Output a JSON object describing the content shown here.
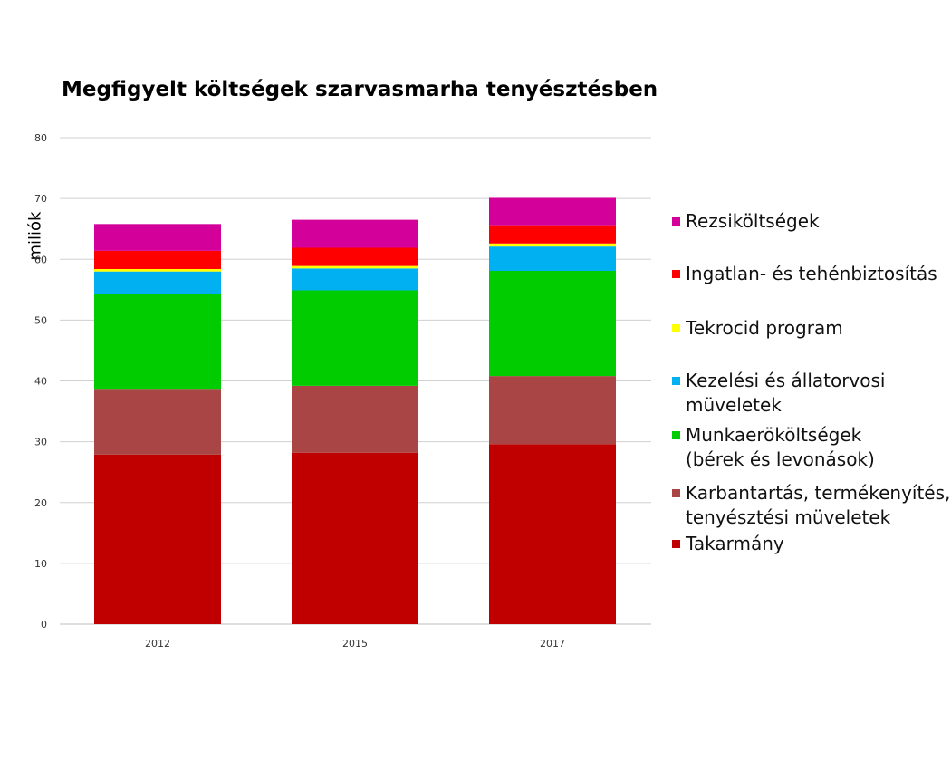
{
  "chart_data": {
    "type": "bar",
    "stacked": true,
    "title": "Megfigyelt költségek szarvasmarha tenyésztésben",
    "xlabel": "",
    "ylabel": "miliók",
    "ylim": [
      0,
      80
    ],
    "yticks": [
      0,
      10,
      20,
      30,
      40,
      50,
      60,
      70,
      80
    ],
    "grid": true,
    "legend_position": "right",
    "categories": [
      "2012",
      "2015",
      "2017"
    ],
    "series": [
      {
        "name": "Takarmány",
        "color": "#c00000",
        "values": [
          27.9,
          28.2,
          29.6
        ]
      },
      {
        "name": "Karbantartás, termékenyítés, tenyésztési müveletek",
        "color": "#a94545",
        "values": [
          10.8,
          11.0,
          11.2
        ]
      },
      {
        "name": "Munkaerököltségek (bérek és levonások)",
        "color": "#00cc00",
        "values": [
          15.6,
          15.7,
          17.3
        ]
      },
      {
        "name": "Kezelési és állatorvosi müveletek",
        "color": "#00b0f0",
        "values": [
          3.7,
          3.6,
          4.0
        ]
      },
      {
        "name": "Tekrocid program",
        "color": "#ffff00",
        "values": [
          0.4,
          0.4,
          0.5
        ]
      },
      {
        "name": "Ingatlan- és tehénbiztosítás",
        "color": "#ff0000",
        "values": [
          3.0,
          3.0,
          3.0
        ]
      },
      {
        "name": "Rezsiköltségek",
        "color": "#d4009a",
        "values": [
          4.4,
          4.6,
          4.5
        ]
      }
    ]
  },
  "legend": {
    "items": [
      {
        "lines": [
          "Rezsiköltségek"
        ],
        "color": "#d4009a"
      },
      {
        "lines": [
          "Ingatlan- és tehénbiztosítás"
        ],
        "color": "#ff0000"
      },
      {
        "lines": [
          "Tekrocid program"
        ],
        "color": "#ffff00"
      },
      {
        "lines": [
          "Kezelési és állatorvosi",
          "müveletek"
        ],
        "color": "#00b0f0"
      },
      {
        "lines": [
          "Munkaerököltségek",
          "(bérek és levonások)"
        ],
        "color": "#00cc00"
      },
      {
        "lines": [
          "Karbantartás, termékenyítés,",
          "tenyésztési müveletek"
        ],
        "color": "#a94545"
      },
      {
        "lines": [
          "Takarmány"
        ],
        "color": "#c00000"
      }
    ]
  }
}
